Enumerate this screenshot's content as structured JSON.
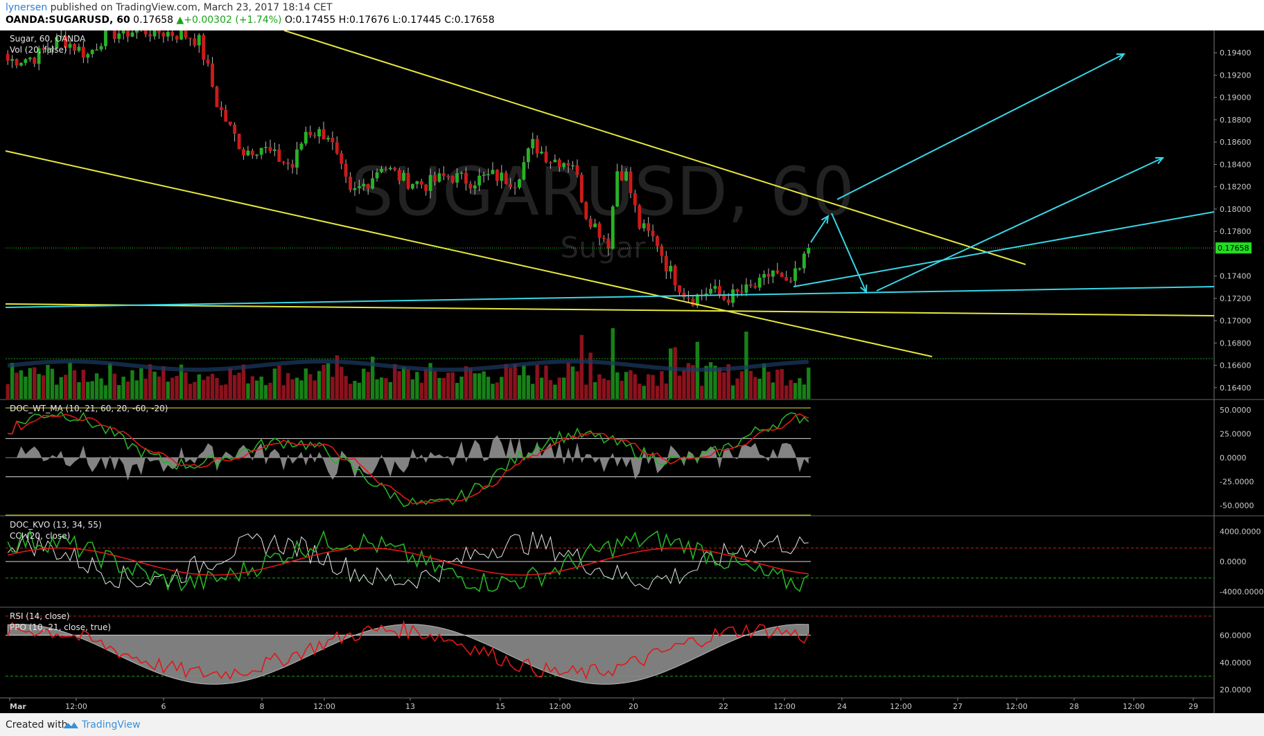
{
  "header": {
    "author": "lynersen",
    "published_text": "published on TradingView.com, March 23, 2017 18:14 CET",
    "symbol": "OANDA:SUGARUSD, 60",
    "last": "0.17658",
    "change": "▲+0.00302 (+1.74%)",
    "ohlc": "O:0.17455 H:0.17676 L:0.17445 C:0.17658"
  },
  "footer": {
    "created_label": "Created with",
    "brand": "TradingView"
  },
  "colors": {
    "background": "#000000",
    "up": "#26b226",
    "down": "#cc1a1a",
    "trendline_yellow": "#e8e840",
    "trendline_cyan": "#38d8e8",
    "price_tag": "#22dd22",
    "signal_red": "#e01818",
    "signal_green": "#26b226"
  },
  "chart_data": {
    "type": "candlestick",
    "title": "Sugar, 60, OANDA",
    "watermark": "SUGARUSD, 60",
    "watermark_sub": "Sugar",
    "price_range": [
      0.163,
      0.196
    ],
    "price_ticks": [
      "0.19400",
      "0.19200",
      "0.19000",
      "0.18800",
      "0.18600",
      "0.18400",
      "0.18200",
      "0.18000",
      "0.17800",
      "0.17400",
      "0.17200",
      "0.17000",
      "0.16800",
      "0.16600",
      "0.16400"
    ],
    "last_price_label": "0.17658",
    "x_labels": [
      "Mar",
      "12:00",
      "6",
      "8",
      "12:00",
      "13",
      "15",
      "12:00",
      "20",
      "22",
      "12:00",
      "24",
      "12:00",
      "27",
      "12:00",
      "28",
      "12:00",
      "29"
    ],
    "panes": [
      {
        "name": "price",
        "labels": [
          "Sugar, 60, OANDA",
          "Vol (20, false)"
        ]
      },
      {
        "name": "wt",
        "labels": [
          "DOC_WT_MA (10, 21, 60, 20, -60, -20)"
        ],
        "range": [
          -60,
          60
        ],
        "ticks": [
          "50.0000",
          "25.0000",
          "0.0000",
          "-25.0000",
          "-50.0000"
        ]
      },
      {
        "name": "kvo",
        "labels": [
          "DOC_KVO (13, 34, 55)",
          "CCI (20, close)"
        ],
        "range": [
          -6000,
          6000
        ],
        "ticks": [
          "4000.0000",
          "0.0000",
          "-4000.0000"
        ]
      },
      {
        "name": "rsi",
        "labels": [
          "RSI (14, close)",
          "PPO (10, 21, close, true)"
        ],
        "range": [
          14,
          80
        ],
        "ticks": [
          "60.0000",
          "40.0000",
          "20.0000"
        ]
      }
    ],
    "price_anchors": [
      [
        0,
        0.1933
      ],
      [
        6,
        0.1936
      ],
      [
        12,
        0.1953
      ],
      [
        18,
        0.1938
      ],
      [
        22,
        0.1957
      ],
      [
        30,
        0.196
      ],
      [
        36,
        0.1958
      ],
      [
        41,
        0.1955
      ],
      [
        43,
        0.195
      ],
      [
        45,
        0.1925
      ],
      [
        47,
        0.1895
      ],
      [
        50,
        0.1872
      ],
      [
        53,
        0.1852
      ],
      [
        57,
        0.1856
      ],
      [
        60,
        0.1847
      ],
      [
        64,
        0.1838
      ],
      [
        67,
        0.187
      ],
      [
        72,
        0.1867
      ],
      [
        74,
        0.1845
      ],
      [
        77,
        0.1812
      ],
      [
        81,
        0.1825
      ],
      [
        84,
        0.184
      ],
      [
        89,
        0.1826
      ],
      [
        94,
        0.1822
      ],
      [
        99,
        0.183
      ],
      [
        104,
        0.1825
      ],
      [
        109,
        0.183
      ],
      [
        114,
        0.1825
      ],
      [
        118,
        0.1858
      ],
      [
        122,
        0.1845
      ],
      [
        127,
        0.1842
      ],
      [
        130,
        0.1796
      ],
      [
        133,
        0.178
      ],
      [
        135,
        0.177
      ],
      [
        137,
        0.1835
      ],
      [
        139,
        0.183
      ],
      [
        142,
        0.1785
      ],
      [
        146,
        0.177
      ],
      [
        148,
        0.175
      ],
      [
        152,
        0.1725
      ],
      [
        154,
        0.172
      ],
      [
        158,
        0.1728
      ],
      [
        161,
        0.172
      ],
      [
        165,
        0.1725
      ],
      [
        169,
        0.1732
      ],
      [
        172,
        0.1745
      ],
      [
        175,
        0.173
      ],
      [
        178,
        0.1745
      ],
      [
        180,
        0.1766
      ]
    ],
    "volume_spikes": [
      [
        129,
        0.9
      ],
      [
        136,
        1.0
      ],
      [
        155,
        0.8
      ],
      [
        166,
        0.95
      ],
      [
        149,
        0.7
      ],
      [
        150,
        0.72
      ],
      [
        74,
        0.6
      ],
      [
        82,
        0.58
      ],
      [
        121,
        0.45
      ],
      [
        131,
        0.64
      ],
      [
        180,
        0.42
      ]
    ]
  }
}
